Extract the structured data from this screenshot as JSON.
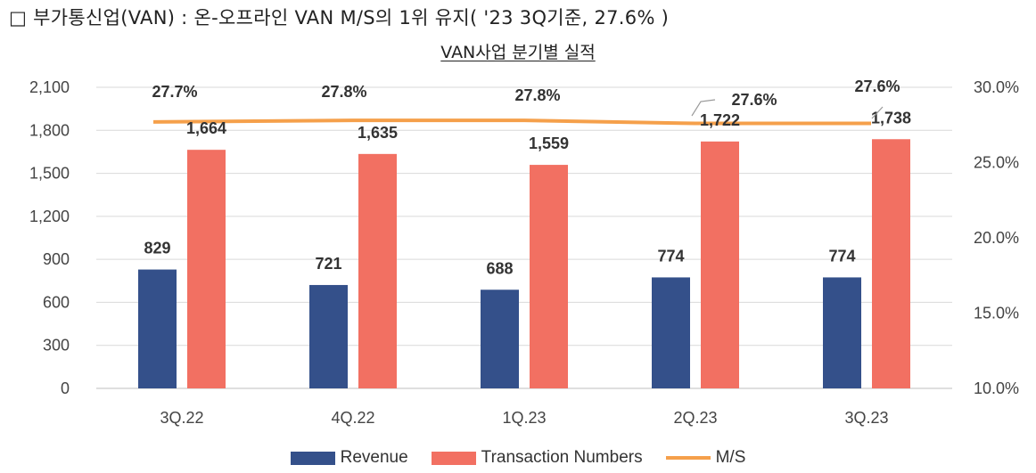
{
  "header": {
    "text": "□ 부가통신업(VAN) : 온-오프라인 VAN M/S의 1위 유지( '23 3Q기준, 27.6% )"
  },
  "chart_data": {
    "type": "bar",
    "title": "VAN사업 분기별 실적",
    "categories": [
      "3Q.22",
      "4Q.22",
      "1Q.23",
      "2Q.23",
      "3Q.23"
    ],
    "series": [
      {
        "name": "Revenue",
        "type": "bar",
        "axis": "left",
        "color": "#34508a",
        "values": [
          829,
          721,
          688,
          774,
          774
        ],
        "labels": [
          "829",
          "721",
          "688",
          "774",
          "774"
        ]
      },
      {
        "name": "Transaction Numbers",
        "type": "bar",
        "axis": "left",
        "color": "#f27062",
        "values": [
          1664,
          1635,
          1559,
          1722,
          1738
        ],
        "labels": [
          "1,664",
          "1,635",
          "1,559",
          "1,722",
          "1,738"
        ]
      },
      {
        "name": "M/S",
        "type": "line",
        "axis": "right",
        "color": "#f5a04b",
        "values": [
          27.7,
          27.8,
          27.8,
          27.6,
          27.6
        ],
        "labels": [
          "27.7%",
          "27.8%",
          "27.8%",
          "27.6%",
          "27.6%"
        ]
      }
    ],
    "y_left": {
      "min": 0,
      "max": 2100,
      "ticks": [
        "0",
        "300",
        "600",
        "900",
        "1,200",
        "1,500",
        "1,800",
        "2,100"
      ]
    },
    "y_right": {
      "min": 10,
      "max": 30,
      "ticks": [
        "10.0%",
        "15.0%",
        "20.0%",
        "25.0%",
        "30.0%"
      ]
    },
    "grid": true,
    "legend_position": "bottom"
  }
}
